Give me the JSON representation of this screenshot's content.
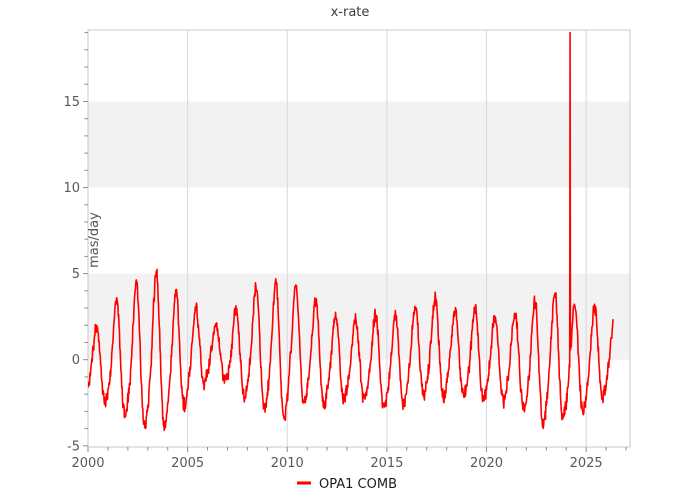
{
  "chart_data": {
    "type": "line",
    "title": "x-rate",
    "xlabel": "",
    "ylabel": "mas/day",
    "xlim": [
      2000,
      2027.2
    ],
    "ylim": [
      -5.07,
      19.15
    ],
    "x_major_ticks": [
      2000,
      2005,
      2010,
      2015,
      2020,
      2025
    ],
    "x_minor_tick_step_years": 1,
    "y_major_ticks": [
      -5,
      0,
      5,
      10,
      15
    ],
    "y_minor_tick_step": 1,
    "shaded_bands": [
      [
        0,
        5
      ],
      [
        10,
        15
      ]
    ],
    "grid": "vertical-at-x-major-ticks",
    "legend_position": "bottom-center",
    "series": [
      {
        "name": "OPA1 COMB",
        "color": "#ff0000",
        "x_start": 2000.0,
        "x_end": 2026.35,
        "samples_per_year": 52,
        "seasonal_phase": 0.15,
        "seasonal_amplitude_factor": 0.92,
        "semiannual_factor": 0.15,
        "noise_amplitude": 0.5,
        "noise_seed": 20240419,
        "value_floor": -4.95,
        "outlier": {
          "x": 2024.2,
          "value": 19.0
        },
        "annual_envelope": [
          {
            "year": 2000,
            "min": -2.4,
            "max": 1.9
          },
          {
            "year": 2001,
            "min": -3.4,
            "max": 3.5
          },
          {
            "year": 2002,
            "min": -4.5,
            "max": 4.4
          },
          {
            "year": 2003,
            "min": -4.8,
            "max": 4.9
          },
          {
            "year": 2004,
            "min": -3.7,
            "max": 3.5
          },
          {
            "year": 2005,
            "min": -2.0,
            "max": 2.8
          },
          {
            "year": 2006,
            "min": -1.0,
            "max": 1.9
          },
          {
            "year": 2007,
            "min": -2.6,
            "max": 3.0
          },
          {
            "year": 2008,
            "min": -2.7,
            "max": 4.2
          },
          {
            "year": 2009,
            "min": -4.4,
            "max": 4.4
          },
          {
            "year": 2010,
            "min": -3.0,
            "max": 4.0
          },
          {
            "year": 2011,
            "min": -3.1,
            "max": 3.3
          },
          {
            "year": 2012,
            "min": -2.8,
            "max": 2.4
          },
          {
            "year": 2013,
            "min": -2.4,
            "max": 2.2
          },
          {
            "year": 2014,
            "min": -2.9,
            "max": 2.5
          },
          {
            "year": 2015,
            "min": -3.3,
            "max": 2.6
          },
          {
            "year": 2016,
            "min": -2.3,
            "max": 3.0
          },
          {
            "year": 2017,
            "min": -2.7,
            "max": 3.5
          },
          {
            "year": 2018,
            "min": -2.4,
            "max": 2.7
          },
          {
            "year": 2019,
            "min": -2.6,
            "max": 2.8
          },
          {
            "year": 2020,
            "min": -2.9,
            "max": 2.5
          },
          {
            "year": 2021,
            "min": -2.6,
            "max": 2.6
          },
          {
            "year": 2022,
            "min": -4.3,
            "max": 3.3
          },
          {
            "year": 2023,
            "min": -4.0,
            "max": 3.6
          },
          {
            "year": 2024,
            "min": -3.8,
            "max": 3.2
          },
          {
            "year": 2025,
            "min": -3.0,
            "max": 2.9
          },
          {
            "year": 2026,
            "min": -1.5,
            "max": 2.2
          }
        ]
      }
    ],
    "colors": {
      "series_red": "#ff0000",
      "band_fill": "#f2f2f2",
      "grid_line": "#d8d8d8",
      "spine": "#c8c8c8",
      "tick_mark": "#8c8c8c",
      "tick_label": "#595959",
      "title_text": "#3c3c3c",
      "legend_text": "#1c1c1c",
      "background": "#ffffff"
    }
  },
  "legend": {
    "items": [
      {
        "label": "OPA1 COMB",
        "color": "#ff0000"
      }
    ]
  }
}
